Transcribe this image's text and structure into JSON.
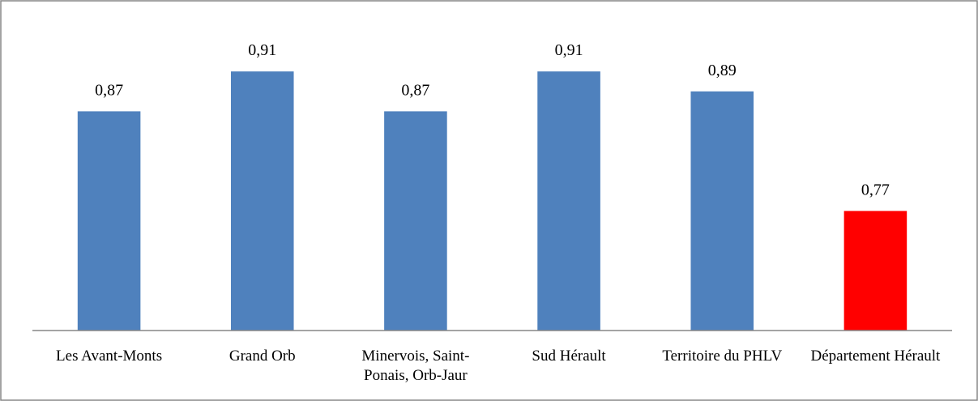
{
  "chart_data": {
    "type": "bar",
    "categories": [
      "Les Avant-Monts",
      "Grand Orb",
      "Minervois, Saint-Ponais, Orb-Jaur",
      "Sud Hérault",
      "Territoire du PHLV",
      "Département Hérault"
    ],
    "values": [
      0.87,
      0.91,
      0.87,
      0.91,
      0.89,
      0.77
    ],
    "value_labels": [
      "0,87",
      "0,91",
      "0,87",
      "0,91",
      "0,89",
      "0,77"
    ],
    "colors": [
      "#4f81bd",
      "#4f81bd",
      "#4f81bd",
      "#4f81bd",
      "#4f81bd",
      "#ff0000"
    ],
    "ylim": [
      0.65,
      0.95
    ]
  }
}
